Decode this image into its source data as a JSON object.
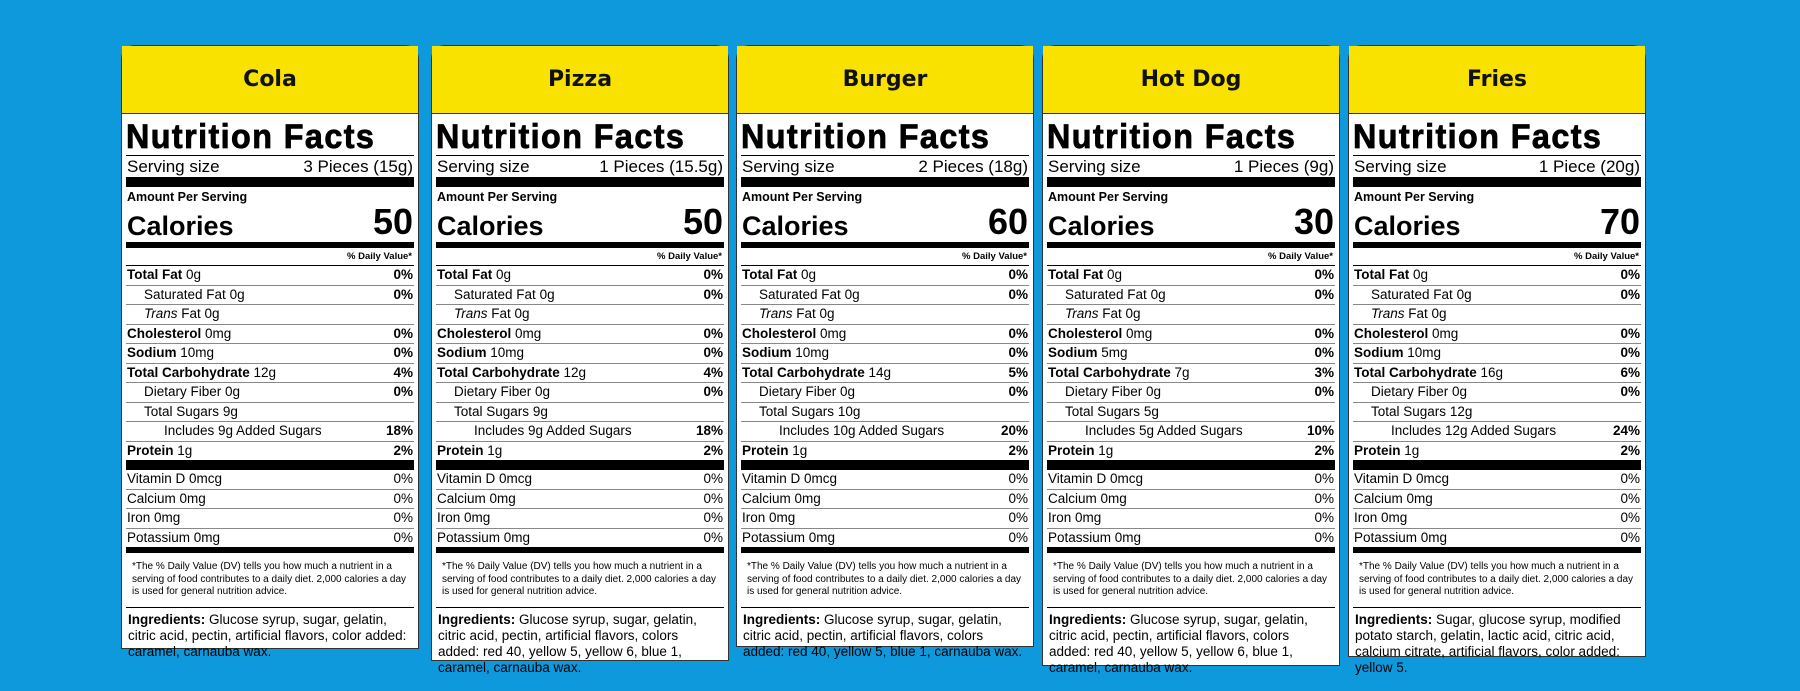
{
  "labels": {
    "nutrition_facts": "Nutrition Facts",
    "serving_size": "Serving size",
    "amount_per_serving": "Amount Per Serving",
    "calories": "Calories",
    "daily_value": "% Daily Value*",
    "total_fat": "Total Fat",
    "saturated_fat": "Saturated Fat",
    "trans": "Trans",
    "fat": " Fat",
    "cholesterol": "Cholesterol",
    "sodium": "Sodium",
    "total_carbohydrate": "Total Carbohydrate",
    "dietary_fiber": "Dietary Fiber",
    "total_sugars": "Total Sugars",
    "protein": "Protein",
    "vitamin_d": "Vitamin D",
    "calcium": "Calcium",
    "iron": "Iron",
    "potassium": "Potassium",
    "footnote": "*The % Daily Value (DV) tells you how much a nutrient in a serving of food contributes to a daily diet. 2,000 calories a day is used for general nutrition advice.",
    "ingredients": "Ingredients:"
  },
  "cards": [
    {
      "name": "Cola",
      "serving": "3 Pieces (15g)",
      "calories": "50",
      "total_fat": "0g",
      "total_fat_dv": "0%",
      "sat_fat": "0g",
      "sat_fat_dv": "0%",
      "trans_fat": "0g",
      "cholesterol": "0mg",
      "cholesterol_dv": "0%",
      "sodium": "10mg",
      "sodium_dv": "0%",
      "carb": "12g",
      "carb_dv": "4%",
      "fiber": "0g",
      "fiber_dv": "0%",
      "sugars": "9g",
      "added": "Includes 9g Added Sugars",
      "added_dv": "18%",
      "protein": "1g",
      "protein_dv": "2%",
      "vitd": "0mcg",
      "vitd_dv": "0%",
      "calcium": "0mg",
      "calcium_dv": "0%",
      "iron": "0mg",
      "iron_dv": "0%",
      "potassium": "0mg",
      "potassium_dv": "0%",
      "ingredients": "Glucose syrup, sugar, gelatin, citric acid, pectin, artificial flavors, color added: caramel, carnauba wax."
    },
    {
      "name": "Pizza",
      "serving": "1 Pieces (15.5g)",
      "calories": "50",
      "total_fat": "0g",
      "total_fat_dv": "0%",
      "sat_fat": "0g",
      "sat_fat_dv": "0%",
      "trans_fat": "0g",
      "cholesterol": "0mg",
      "cholesterol_dv": "0%",
      "sodium": "10mg",
      "sodium_dv": "0%",
      "carb": "12g",
      "carb_dv": "4%",
      "fiber": "0g",
      "fiber_dv": "0%",
      "sugars": "9g",
      "added": "Includes 9g Added Sugars",
      "added_dv": "18%",
      "protein": "1g",
      "protein_dv": "2%",
      "vitd": "0mcg",
      "vitd_dv": "0%",
      "calcium": "0mg",
      "calcium_dv": "0%",
      "iron": "0mg",
      "iron_dv": "0%",
      "potassium": "0mg",
      "potassium_dv": "0%",
      "ingredients": "Glucose syrup, sugar, gelatin, citric acid, pectin, artificial flavors, colors added: red 40, yellow 5, yellow 6, blue 1, caramel, carnauba wax."
    },
    {
      "name": "Burger",
      "serving": "2 Pieces (18g)",
      "calories": "60",
      "total_fat": "0g",
      "total_fat_dv": "0%",
      "sat_fat": "0g",
      "sat_fat_dv": "0%",
      "trans_fat": "0g",
      "cholesterol": "0mg",
      "cholesterol_dv": "0%",
      "sodium": "10mg",
      "sodium_dv": "0%",
      "carb": "14g",
      "carb_dv": "5%",
      "fiber": "0g",
      "fiber_dv": "0%",
      "sugars": "10g",
      "added": "Includes 10g Added Sugars",
      "added_dv": "20%",
      "protein": "1g",
      "protein_dv": "2%",
      "vitd": "0mcg",
      "vitd_dv": "0%",
      "calcium": "0mg",
      "calcium_dv": "0%",
      "iron": "0mg",
      "iron_dv": "0%",
      "potassium": "0mg",
      "potassium_dv": "0%",
      "ingredients": "Glucose syrup, sugar, gelatin, citric acid, pectin, artificial flavors, colors added: red 40, yellow 5, blue 1, carnauba wax."
    },
    {
      "name": "Hot Dog",
      "serving": "1 Pieces (9g)",
      "calories": "30",
      "total_fat": "0g",
      "total_fat_dv": "0%",
      "sat_fat": "0g",
      "sat_fat_dv": "0%",
      "trans_fat": "0g",
      "cholesterol": "0mg",
      "cholesterol_dv": "0%",
      "sodium": "5mg",
      "sodium_dv": "0%",
      "carb": "7g",
      "carb_dv": "3%",
      "fiber": "0g",
      "fiber_dv": "0%",
      "sugars": "5g",
      "added": "Includes 5g Added Sugars",
      "added_dv": "10%",
      "protein": "1g",
      "protein_dv": "2%",
      "vitd": "0mcg",
      "vitd_dv": "0%",
      "calcium": "0mg",
      "calcium_dv": "0%",
      "iron": "0mg",
      "iron_dv": "0%",
      "potassium": "0mg",
      "potassium_dv": "0%",
      "ingredients": "Glucose syrup, sugar, gelatin, citric acid, pectin, artificial flavors, colors added: red 40, yellow 5, yellow 6, blue 1, caramel, carnauba wax."
    },
    {
      "name": "Fries",
      "serving": "1 Piece (20g)",
      "calories": "70",
      "total_fat": "0g",
      "total_fat_dv": "0%",
      "sat_fat": "0g",
      "sat_fat_dv": "0%",
      "trans_fat": "0g",
      "cholesterol": "0mg",
      "cholesterol_dv": "0%",
      "sodium": "10mg",
      "sodium_dv": "0%",
      "carb": "16g",
      "carb_dv": "6%",
      "fiber": "0g",
      "fiber_dv": "0%",
      "sugars": "12g",
      "added": "Includes 12g Added Sugars",
      "added_dv": "24%",
      "protein": "1g",
      "protein_dv": "2%",
      "vitd": "0mcg",
      "vitd_dv": "0%",
      "calcium": "0mg",
      "calcium_dv": "0%",
      "iron": "0mg",
      "iron_dv": "0%",
      "potassium": "0mg",
      "potassium_dv": "0%",
      "ingredients": "Sugar, glucose syrup, modified potato starch, gelatin, lactic acid, citric acid, calcium citrate, artificial flavors, color added: yellow 5."
    }
  ],
  "colors": {
    "background": "#0d99db",
    "header": "#f9e100"
  }
}
